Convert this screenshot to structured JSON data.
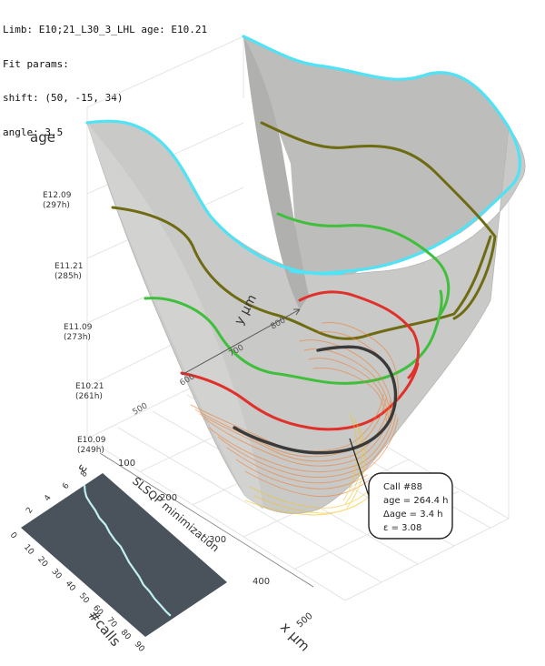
{
  "header": {
    "line1": "Limb: E10;21_L30_3_LHL age: E10.21",
    "line2": "Fit params:",
    "line3": "shift: (50, -15, 34)",
    "line4": "angle: 3.5"
  },
  "axes": {
    "age_label": "age",
    "x_label": "x μm",
    "y_label": "y μm",
    "age_ticks": [
      {
        "stage": "E12.09",
        "hours": "(297h)"
      },
      {
        "stage": "E11.21",
        "hours": "(285h)"
      },
      {
        "stage": "E11.09",
        "hours": "(273h)"
      },
      {
        "stage": "E10.21",
        "hours": "(261h)"
      },
      {
        "stage": "E10.09",
        "hours": "(249h)"
      }
    ],
    "x_ticks": [
      "100",
      "200",
      "300",
      "400",
      "500"
    ],
    "y_ticks": [
      "500",
      "600",
      "700",
      "800"
    ]
  },
  "callout": {
    "line1": "Call #88",
    "line2": "age = 264.4 h",
    "line3": "Δage = 3.4 h",
    "line4": "ε = 3.08"
  },
  "inset": {
    "title": "SLSQP minimization",
    "x_label": "#calls",
    "y_label": "ε",
    "x_ticks": [
      "0",
      "10",
      "20",
      "30",
      "40",
      "50",
      "60",
      "70",
      "80",
      "90"
    ],
    "y_ticks": [
      "2",
      "4",
      "6",
      "8"
    ],
    "epsilon_curve": [
      {
        "calls": 0,
        "eps": 7.0
      },
      {
        "calls": 3,
        "eps": 6.6
      },
      {
        "calls": 6,
        "eps": 6.3
      },
      {
        "calls": 10,
        "eps": 6.1
      },
      {
        "calls": 15,
        "eps": 5.9
      },
      {
        "calls": 20,
        "eps": 5.6
      },
      {
        "calls": 25,
        "eps": 5.5
      },
      {
        "calls": 30,
        "eps": 5.2
      },
      {
        "calls": 35,
        "eps": 5.0
      },
      {
        "calls": 40,
        "eps": 4.9
      },
      {
        "calls": 45,
        "eps": 4.6
      },
      {
        "calls": 50,
        "eps": 4.3
      },
      {
        "calls": 55,
        "eps": 4.1
      },
      {
        "calls": 60,
        "eps": 3.9
      },
      {
        "calls": 65,
        "eps": 3.6
      },
      {
        "calls": 70,
        "eps": 3.5
      },
      {
        "calls": 75,
        "eps": 3.3
      },
      {
        "calls": 80,
        "eps": 3.2
      },
      {
        "calls": 85,
        "eps": 3.1
      },
      {
        "calls": 88,
        "eps": 3.08
      }
    ]
  },
  "colors": {
    "surface": "#c9c9c7",
    "rim": "#4fe3f5",
    "olive": "#6e6b12",
    "green": "#3fbf3c",
    "red": "#e0302b",
    "dark_curve": "#3a3a3a",
    "candidate_orange": "#f07a2a",
    "candidate_yellow": "#f2c21d",
    "inset_bg": "#4a525b",
    "inset_curve": "#bff0f2"
  }
}
